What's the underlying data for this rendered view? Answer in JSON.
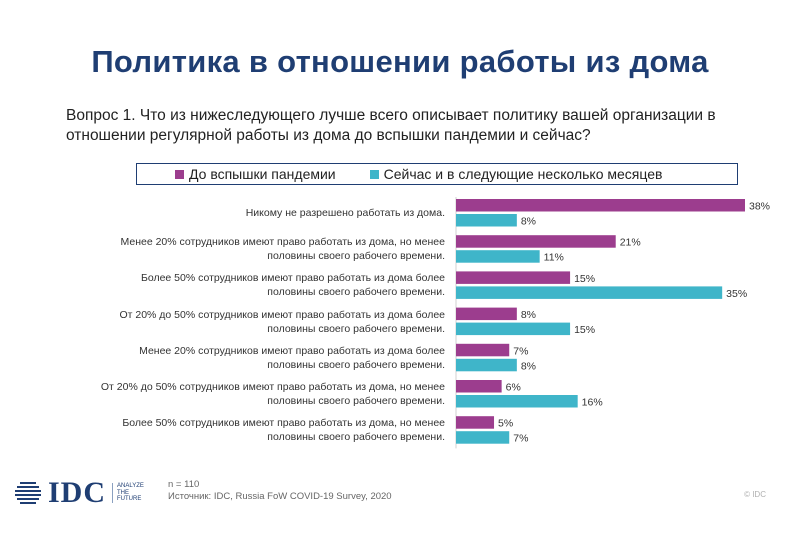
{
  "page": {
    "title": "Политика в отношении работы из дома",
    "question": "Вопрос 1. Что из нижеследующего лучше всего описывает политику вашей организации в отношении регулярной работы из дома до вспышки пандемии и сейчас?"
  },
  "chart_data": {
    "type": "bar",
    "orientation": "horizontal",
    "value_suffix": "%",
    "categories": [
      [
        "Никому не разрешено работать из дома."
      ],
      [
        "Менее 20% сотрудников имеют право работать из дома, но менее",
        "половины своего рабочего времени."
      ],
      [
        "Более 50% сотрудников имеют право работать из дома более",
        "половины своего рабочего времени."
      ],
      [
        "От 20% до 50% сотрудников имеют право работать из дома более",
        "половины своего рабочего времени."
      ],
      [
        "Менее 20% сотрудников имеют право работать из дома более",
        "половины своего рабочего времени."
      ],
      [
        "От 20% до 50% сотрудников имеют право работать из дома, но менее",
        "половины своего рабочего времени."
      ],
      [
        "Более 50% сотрудников имеют право работать из дома, но менее",
        "половины своего рабочего времени."
      ]
    ],
    "series": [
      {
        "name": "До вспышки пандемии",
        "color": "#9c3d8e",
        "values": [
          38,
          21,
          15,
          8,
          7,
          6,
          5
        ]
      },
      {
        "name": "Сейчас и в следующие несколько месяцев",
        "color": "#3fb5c9",
        "values": [
          8,
          11,
          35,
          15,
          8,
          16,
          7
        ]
      }
    ],
    "xlim": [
      0,
      38
    ],
    "legend_position": "top",
    "grid": false
  },
  "footer": {
    "logo_text": "IDC",
    "tagline": [
      "ANALYZE",
      "THE",
      "FUTURE"
    ],
    "sample": "n = 110",
    "source": "Источник: IDC, Russia FoW COVID-19 Survey, 2020",
    "copyright": "© IDC"
  }
}
